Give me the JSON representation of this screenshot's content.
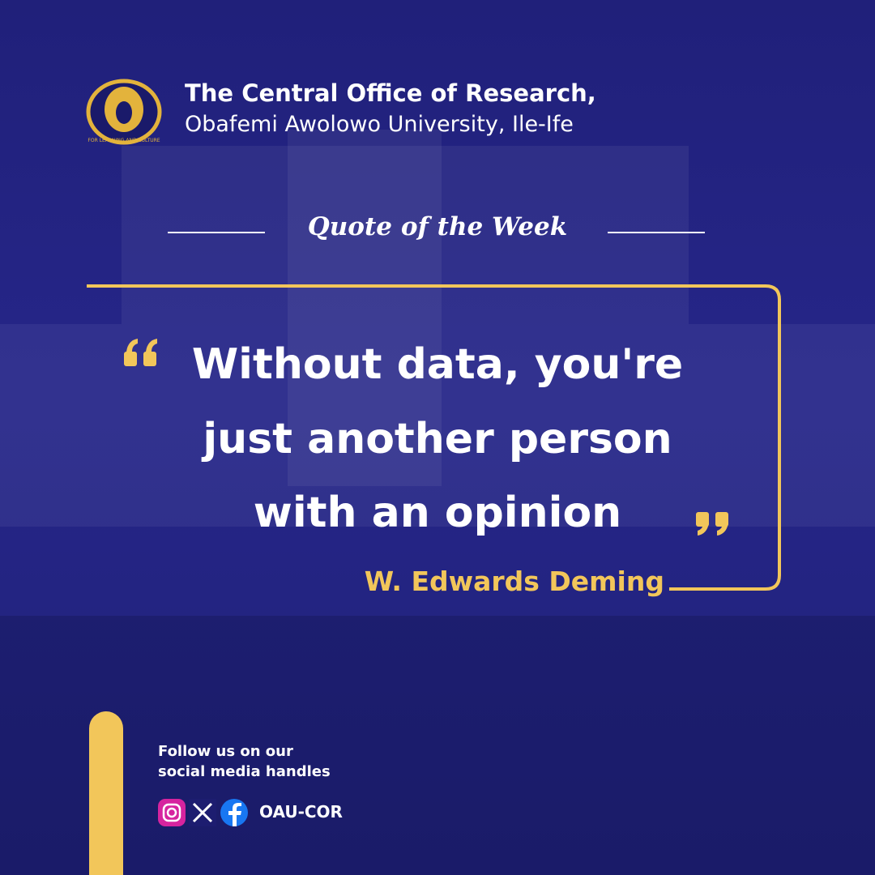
{
  "header": {
    "title": "The Central Office of Research,",
    "subtitle": "Obafemi Awolowo University, Ile-Ife",
    "motto": "FOR LEARNING AND CULTURE"
  },
  "section_title": "Quote of the Week",
  "quote": {
    "lines": [
      "Without data, you're",
      "just another person",
      "with an opinion"
    ],
    "author": "W. Edwards Deming"
  },
  "footer": {
    "lines": [
      "Follow us on our",
      "social media handles"
    ],
    "handle": "OAU-COR"
  }
}
